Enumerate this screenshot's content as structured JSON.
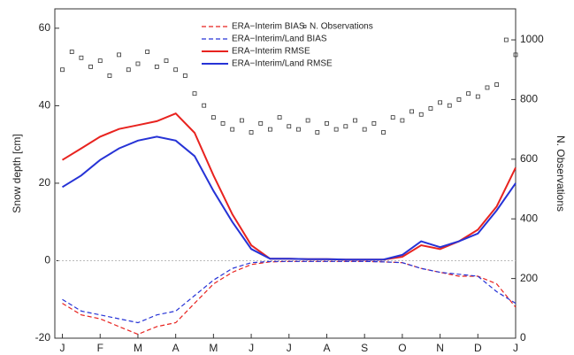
{
  "chart_data": {
    "type": "line",
    "ylabel": "Snow depth [cm]",
    "y2label": "N. Observations",
    "xlim": [
      -0.2,
      12
    ],
    "xticks": [
      {
        "value": 0,
        "label": "J"
      },
      {
        "value": 1,
        "label": "F"
      },
      {
        "value": 2,
        "label": "M"
      },
      {
        "value": 3,
        "label": "A"
      },
      {
        "value": 4,
        "label": "M"
      },
      {
        "value": 5,
        "label": "J"
      },
      {
        "value": 6,
        "label": "J"
      },
      {
        "value": 7,
        "label": "A"
      },
      {
        "value": 8,
        "label": "S"
      },
      {
        "value": 9,
        "label": "O"
      },
      {
        "value": 10,
        "label": "N"
      },
      {
        "value": 11,
        "label": "D"
      },
      {
        "value": 12,
        "label": "J"
      }
    ],
    "ylim": [
      -20,
      65
    ],
    "yticks": [
      -20,
      0,
      20,
      40,
      60
    ],
    "y2lim": [
      0,
      1104
    ],
    "y2ticks": [
      0,
      200,
      400,
      600,
      800,
      1000
    ],
    "x": [
      0,
      0.5,
      1,
      1.5,
      2,
      2.5,
      3,
      3.5,
      4,
      4.5,
      5,
      5.5,
      6,
      6.5,
      7,
      7.5,
      8,
      8.5,
      9,
      9.5,
      10,
      10.5,
      11,
      11.5,
      12
    ],
    "series": [
      {
        "name": "ERA−Interim BIAS",
        "color": "#e8231f",
        "dash": true,
        "width": 1.2,
        "values": [
          -11,
          -14,
          -15,
          -17,
          -19,
          -17,
          -16,
          -11,
          -6,
          -3,
          -1,
          -0.3,
          -0.2,
          -0.2,
          -0.2,
          -0.2,
          -0.2,
          -0.3,
          -0.5,
          -2,
          -3,
          -4,
          -4,
          -6,
          -12
        ]
      },
      {
        "name": "ERA−Interim/Land BIAS",
        "color": "#2633d6",
        "dash": true,
        "width": 1.2,
        "values": [
          -10,
          -13,
          -14,
          -15,
          -16,
          -14,
          -13,
          -9,
          -5,
          -2,
          -0.5,
          -0.2,
          -0.2,
          -0.2,
          -0.2,
          -0.2,
          -0.2,
          -0.3,
          -0.5,
          -2,
          -3,
          -3.5,
          -4,
          -8,
          -11
        ]
      },
      {
        "name": "ERA−Interim RMSE",
        "color": "#e8231f",
        "dash": false,
        "width": 2,
        "values": [
          26,
          29,
          32,
          34,
          35,
          36,
          38,
          33,
          22,
          12,
          4,
          0.5,
          0.5,
          0.4,
          0.4,
          0.3,
          0.3,
          0.3,
          1,
          4,
          3,
          5,
          8,
          14,
          24
        ]
      },
      {
        "name": "ERA−Interim/Land RMSE",
        "color": "#2633d6",
        "dash": false,
        "width": 2,
        "values": [
          19,
          22,
          26,
          29,
          31,
          32,
          31,
          27,
          18,
          10,
          3,
          0.5,
          0.5,
          0.4,
          0.4,
          0.3,
          0.3,
          0.3,
          1.5,
          5,
          3.5,
          5,
          7,
          13,
          20
        ]
      },
      {
        "name": "N. Observations",
        "color": "#333333",
        "axis": "y2",
        "markers": true,
        "x": [
          0,
          0.25,
          0.5,
          0.75,
          1,
          1.25,
          1.5,
          1.75,
          2,
          2.25,
          2.5,
          2.75,
          3,
          3.25,
          3.5,
          3.75,
          4,
          4.25,
          4.5,
          4.75,
          5,
          5.25,
          5.5,
          5.75,
          6,
          6.25,
          6.5,
          6.75,
          7,
          7.25,
          7.5,
          7.75,
          8,
          8.25,
          8.5,
          8.75,
          9,
          9.25,
          9.5,
          9.75,
          10,
          10.25,
          10.5,
          10.75,
          11,
          11.25,
          11.5,
          11.75,
          12
        ],
        "values": [
          900,
          960,
          940,
          910,
          930,
          880,
          950,
          900,
          920,
          960,
          910,
          930,
          900,
          880,
          820,
          780,
          740,
          720,
          700,
          730,
          690,
          720,
          700,
          740,
          710,
          700,
          730,
          690,
          720,
          700,
          710,
          730,
          700,
          720,
          690,
          740,
          730,
          760,
          750,
          770,
          790,
          780,
          800,
          820,
          810,
          840,
          850,
          1000,
          950
        ]
      }
    ],
    "legend": "upper center",
    "zero_line": true
  }
}
